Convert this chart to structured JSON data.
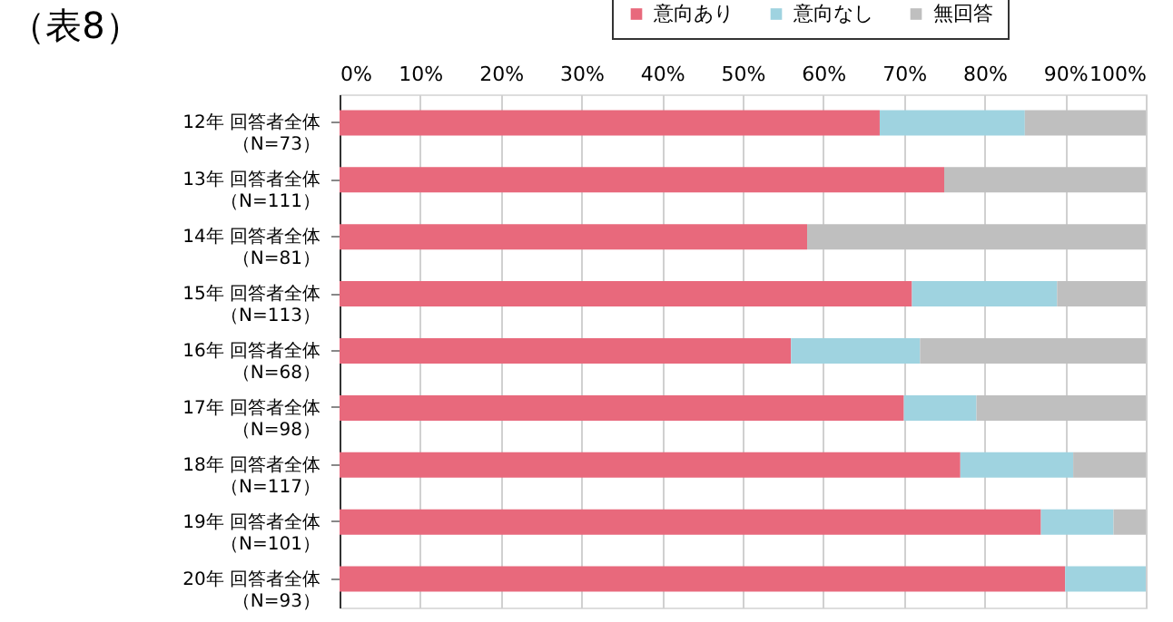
{
  "chart_data": {
    "type": "bar",
    "orientation": "horizontal",
    "stacked": true,
    "title": "（表8）",
    "categories": [
      "12年 回答者全体（N=73）",
      "13年 回答者全体（N=111）",
      "14年 回答者全体（N=81）",
      "15年 回答者全体（N=113）",
      "16年 回答者全体（N=68）",
      "17年 回答者全体（N=98）",
      "18年 回答者全体（N=117）",
      "19年 回答者全体（N=101）",
      "20年 回答者全体（N=93）"
    ],
    "series": [
      {
        "name": "意向あり",
        "color": "#e8697c",
        "values": [
          67,
          75,
          58,
          71,
          56,
          70,
          77,
          87,
          90
        ]
      },
      {
        "name": "意向なし",
        "color": "#9fd3e0",
        "values": [
          18,
          0,
          0,
          18,
          16,
          9,
          14,
          9,
          10
        ]
      },
      {
        "name": "無回答",
        "color": "#bfbfbf",
        "values": [
          15,
          25,
          42,
          11,
          28,
          21,
          9,
          4,
          0
        ]
      }
    ],
    "xlim": [
      0,
      100
    ],
    "xticks": [
      {
        "value": 0,
        "label": "0%"
      },
      {
        "value": 10,
        "label": "10%"
      },
      {
        "value": 20,
        "label": "20%"
      },
      {
        "value": 30,
        "label": "30%"
      },
      {
        "value": 40,
        "label": "40%"
      },
      {
        "value": 50,
        "label": "50%"
      },
      {
        "value": 60,
        "label": "60%"
      },
      {
        "value": 70,
        "label": "70%"
      },
      {
        "value": 80,
        "label": "80%"
      },
      {
        "value": 90,
        "label": "90%"
      },
      {
        "value": 100,
        "label": "100%"
      }
    ],
    "grid": "x",
    "legend": "top"
  }
}
